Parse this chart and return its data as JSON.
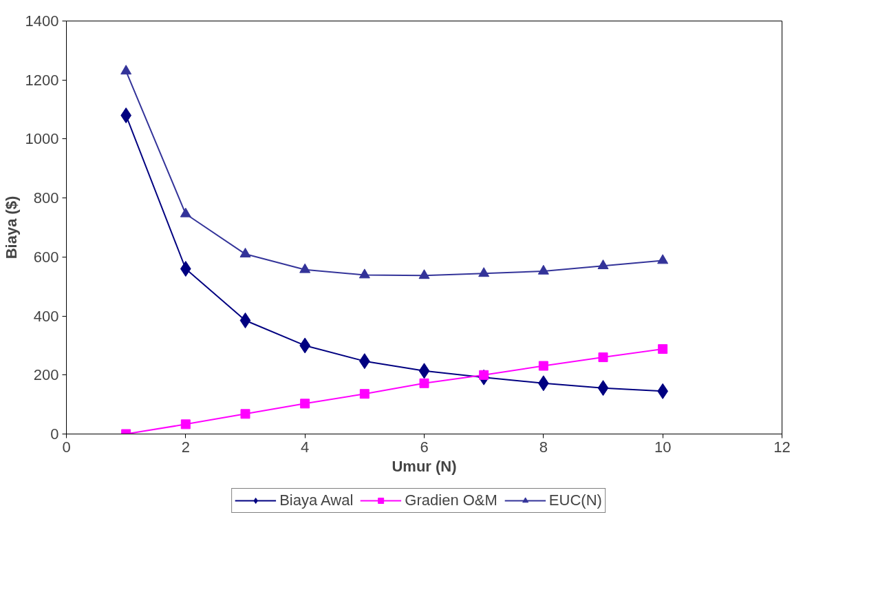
{
  "chart_data": {
    "type": "line",
    "xlabel": "Umur (N)",
    "ylabel": "Biaya ($)",
    "x": [
      1,
      2,
      3,
      4,
      5,
      6,
      7,
      8,
      9,
      10
    ],
    "series": [
      {
        "name": "Biaya Awal",
        "color": "#000080",
        "marker": "diamond",
        "values": [
          1080,
          560,
          385,
          300,
          247,
          214,
          192,
          172,
          156,
          145
        ]
      },
      {
        "name": "Gradien O&M",
        "color": "#ff00ff",
        "marker": "square",
        "values": [
          0,
          33,
          68,
          103,
          136,
          172,
          200,
          231,
          260,
          288
        ]
      },
      {
        "name": "EUC(N)",
        "color": "#333399",
        "marker": "triangle",
        "values": [
          1230,
          746,
          610,
          557,
          539,
          537,
          544,
          552,
          570,
          588
        ]
      }
    ],
    "xlim": [
      0,
      12
    ],
    "xticks": [
      0,
      2,
      4,
      6,
      8,
      10,
      12
    ],
    "ylim": [
      0,
      1400
    ],
    "yticks": [
      0,
      200,
      400,
      600,
      800,
      1000,
      1200,
      1400
    ],
    "grid": false,
    "legend": "bottom",
    "line_style": "solid"
  }
}
